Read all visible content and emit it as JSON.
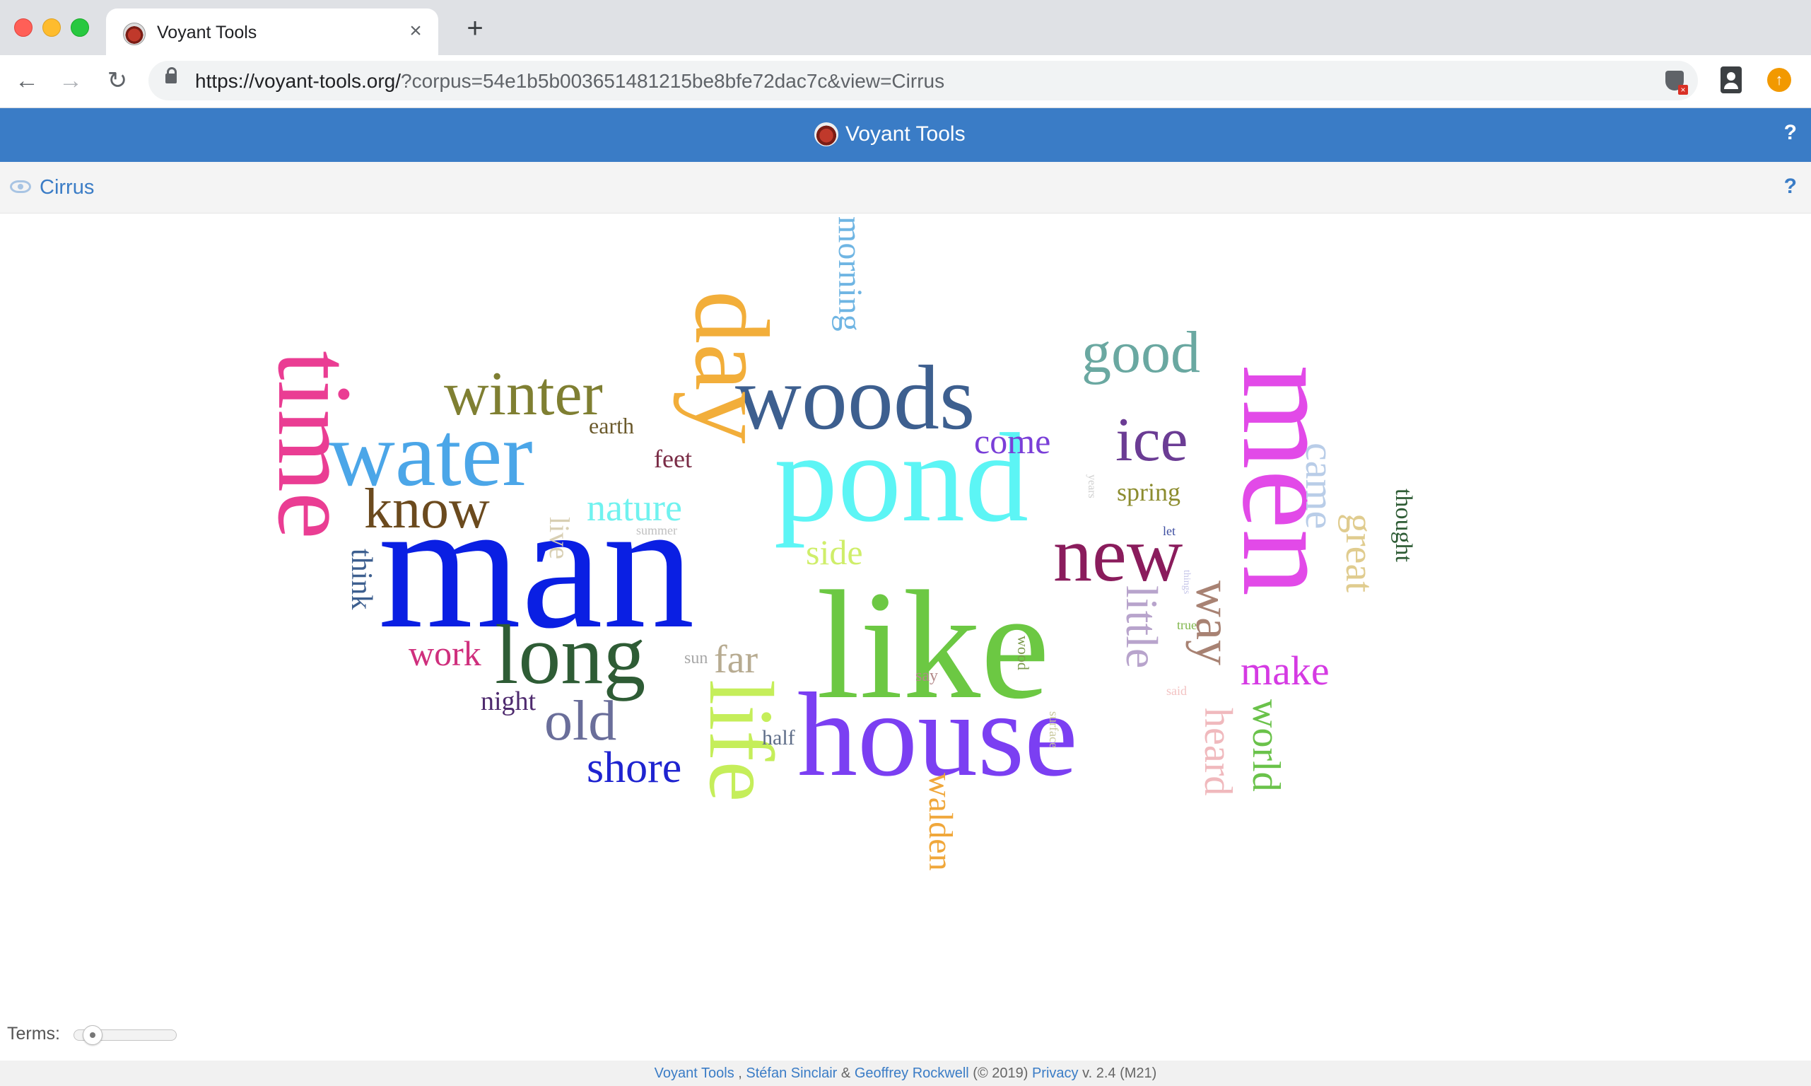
{
  "browser": {
    "tab_title": "Voyant Tools",
    "url_host": "https://voyant-tools.org/",
    "url_rest": "?corpus=54e1b5b003651481215be8bfe72dac7c&view=Cirrus",
    "icons": [
      "back-icon",
      "forward-icon",
      "reload-icon",
      "lock-icon",
      "shield-icon",
      "profile-icon",
      "update-icon"
    ]
  },
  "app": {
    "title": "Voyant Tools",
    "help_label": "?"
  },
  "panel": {
    "title": "Cirrus",
    "help_label": "?"
  },
  "cloud": {
    "words": [
      {
        "text": "man",
        "color": "#0a1fe3"
      },
      {
        "text": "like",
        "color": "#6cc843"
      },
      {
        "text": "house",
        "color": "#7b3ff2"
      },
      {
        "text": "pond",
        "color": "#5cf5f5"
      },
      {
        "text": "woods",
        "color": "#3d5f8f"
      },
      {
        "text": "water",
        "color": "#4ba6e8"
      },
      {
        "text": "men",
        "color": "#e24ae8"
      },
      {
        "text": "day",
        "color": "#f2ae3a"
      },
      {
        "text": "time",
        "color": "#ea3d93"
      },
      {
        "text": "long",
        "color": "#2e5c35"
      },
      {
        "text": "life",
        "color": "#c5ee5a"
      },
      {
        "text": "new",
        "color": "#8a1c5c"
      },
      {
        "text": "winter",
        "color": "#7f7f32"
      },
      {
        "text": "good",
        "color": "#6aa8a1"
      },
      {
        "text": "ice",
        "color": "#6b3c94"
      },
      {
        "text": "know",
        "color": "#6b4a1e"
      },
      {
        "text": "old",
        "color": "#6a6e9a"
      },
      {
        "text": "way",
        "color": "#a88273"
      },
      {
        "text": "shore",
        "color": "#1f24d0"
      },
      {
        "text": "make",
        "color": "#d53ae3"
      },
      {
        "text": "little",
        "color": "#b8a4cc"
      },
      {
        "text": "came",
        "color": "#b9cde8"
      },
      {
        "text": "heard",
        "color": "#f0b9bd"
      },
      {
        "text": "world",
        "color": "#6ac24a"
      },
      {
        "text": "great",
        "color": "#e0cc8f"
      },
      {
        "text": "nature",
        "color": "#70f2ef"
      },
      {
        "text": "come",
        "color": "#7a3fd8"
      },
      {
        "text": "morning",
        "color": "#6fb5e3"
      },
      {
        "text": "walden",
        "color": "#f0a73a"
      },
      {
        "text": "work",
        "color": "#cf2f7d"
      },
      {
        "text": "far",
        "color": "#b7ab91"
      },
      {
        "text": "side",
        "color": "#cfee6a"
      },
      {
        "text": "think",
        "color": "#3d5f8f"
      },
      {
        "text": "live",
        "color": "#d8cfb3"
      },
      {
        "text": "night",
        "color": "#4e2a6e"
      },
      {
        "text": "spring",
        "color": "#8c8c2e"
      },
      {
        "text": "feet",
        "color": "#7a2c46"
      },
      {
        "text": "earth",
        "color": "#6b5a2c"
      },
      {
        "text": "thought",
        "color": "#2e5c35"
      },
      {
        "text": "half",
        "color": "#5e6d88"
      },
      {
        "text": "sun",
        "color": "#a7a7a7"
      },
      {
        "text": "say",
        "color": "#b48a8a"
      },
      {
        "text": "wood",
        "color": "#7b9a4c"
      },
      {
        "text": "surface",
        "color": "#c8c89c"
      },
      {
        "text": "said",
        "color": "#f3c3c3"
      },
      {
        "text": "summer",
        "color": "#c0c0c0"
      },
      {
        "text": "years",
        "color": "#cfcfcf"
      },
      {
        "text": "let",
        "color": "#3d4da0"
      },
      {
        "text": "things",
        "color": "#c5c5e8"
      },
      {
        "text": "true",
        "color": "#7fb54a"
      }
    ]
  },
  "controls": {
    "terms_label": "Terms:",
    "terms_level": 0.08
  },
  "footer": {
    "link_voyant": "Voyant Tools",
    "sep1": " , ",
    "link_sinclair": "Stéfan Sinclair",
    "amp": " & ",
    "link_rockwell": "Geoffrey Rockwell",
    "copyright": " (© 2019) ",
    "link_privacy": "Privacy",
    "version": " v. 2.4 (M21)"
  }
}
